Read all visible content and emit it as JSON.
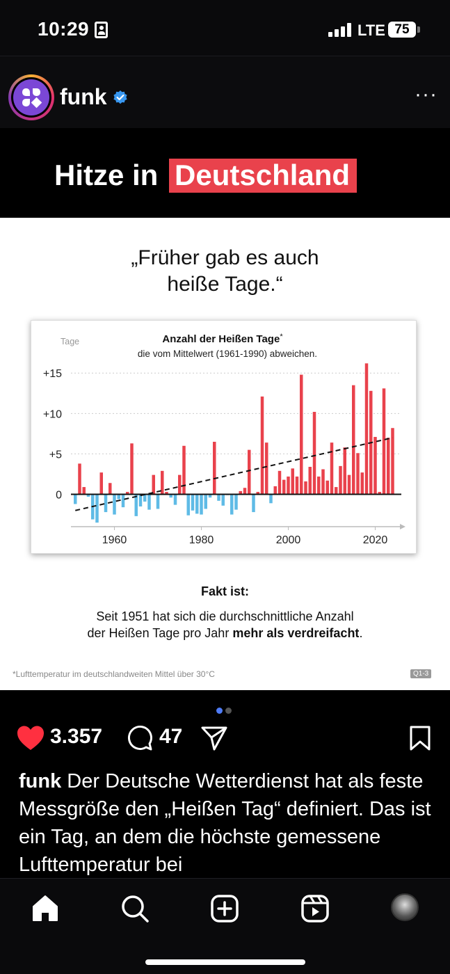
{
  "status": {
    "time": "10:29",
    "network": "LTE",
    "battery": "75"
  },
  "post": {
    "username": "funk",
    "banner_prefix": "Hitze in",
    "banner_highlight": "Deutschland",
    "quote_line1": "„Früher gab es auch",
    "quote_line2": "heiße Tage.“",
    "fact_title": "Fakt ist:",
    "fact_line1": "Seit 1951 hat sich die durchschnittliche Anzahl",
    "fact_line2_prefix": "der Heißen Tage pro Jahr",
    "fact_line2_bold": "mehr als verdreifacht",
    "fact_line2_suffix": ".",
    "footnote": "*Lufttemperatur im deutschlandweiten Mittel über 30°C",
    "source_badge": "Q1-3"
  },
  "actions": {
    "likes": "3.357",
    "comments": "47"
  },
  "caption": {
    "username": "funk",
    "text": "Der Deutsche Wetterdienst hat als feste Messgröße den „Heißen Tag“ definiert. Das ist ein Tag, an dem die höchste gemessene Lufttemperatur bei"
  },
  "colors": {
    "accent_red": "#e9424c",
    "bar_blue": "#5fbbe6",
    "like_red": "#ff3040",
    "verified_blue": "#3897f0"
  },
  "chart_data": {
    "type": "bar",
    "title": "Anzahl der Heißen Tage",
    "title_mark": "*",
    "subtitle": "die vom Mittelwert (1961-1990) abweichen.",
    "ylabel": "Tage",
    "yticks": [
      "+15",
      "+10",
      "+5",
      "0"
    ],
    "ytick_values": [
      15,
      10,
      5,
      0
    ],
    "xticks": [
      "1960",
      "1980",
      "2000",
      "2020"
    ],
    "xtick_values": [
      1960,
      1980,
      2000,
      2020
    ],
    "ylim": [
      -4,
      17
    ],
    "xlim": [
      1950,
      2026
    ],
    "grid": true,
    "trend_line": {
      "x": [
        1951,
        2024
      ],
      "y": [
        -2.0,
        7.0
      ],
      "style": "dashed"
    },
    "x": [
      1951,
      1952,
      1953,
      1954,
      1955,
      1956,
      1957,
      1958,
      1959,
      1960,
      1961,
      1962,
      1963,
      1964,
      1965,
      1966,
      1967,
      1968,
      1969,
      1970,
      1971,
      1972,
      1973,
      1974,
      1975,
      1976,
      1977,
      1978,
      1979,
      1980,
      1981,
      1982,
      1983,
      1984,
      1985,
      1986,
      1987,
      1988,
      1989,
      1990,
      1991,
      1992,
      1993,
      1994,
      1995,
      1996,
      1997,
      1998,
      1999,
      2000,
      2001,
      2002,
      2003,
      2004,
      2005,
      2006,
      2007,
      2008,
      2009,
      2010,
      2011,
      2012,
      2013,
      2014,
      2015,
      2016,
      2017,
      2018,
      2019,
      2020,
      2021,
      2022,
      2023,
      2024
    ],
    "values": [
      -1.2,
      3.8,
      0.9,
      -0.3,
      -3.1,
      -3.5,
      2.7,
      -2.2,
      1.4,
      -2.5,
      -0.6,
      -1.6,
      0.3,
      6.3,
      -2.7,
      -1.5,
      -0.9,
      -1.9,
      2.4,
      -1.8,
      2.9,
      0.3,
      -0.4,
      -1.3,
      2.4,
      6.0,
      -2.6,
      -2.0,
      -2.4,
      -2.5,
      -1.8,
      -0.4,
      6.5,
      -0.8,
      -1.4,
      -0.1,
      -2.5,
      -1.9,
      0.4,
      0.8,
      5.5,
      -2.2,
      0.3,
      12.1,
      6.4,
      -1.1,
      1.0,
      2.9,
      1.8,
      2.2,
      3.2,
      2.2,
      14.8,
      1.6,
      3.4,
      10.2,
      2.2,
      3.1,
      1.7,
      6.4,
      0.9,
      3.5,
      5.8,
      2.4,
      13.5,
      5.1,
      2.7,
      16.2,
      12.8,
      7.1,
      0.3,
      13.1,
      7.0,
      8.2
    ]
  }
}
